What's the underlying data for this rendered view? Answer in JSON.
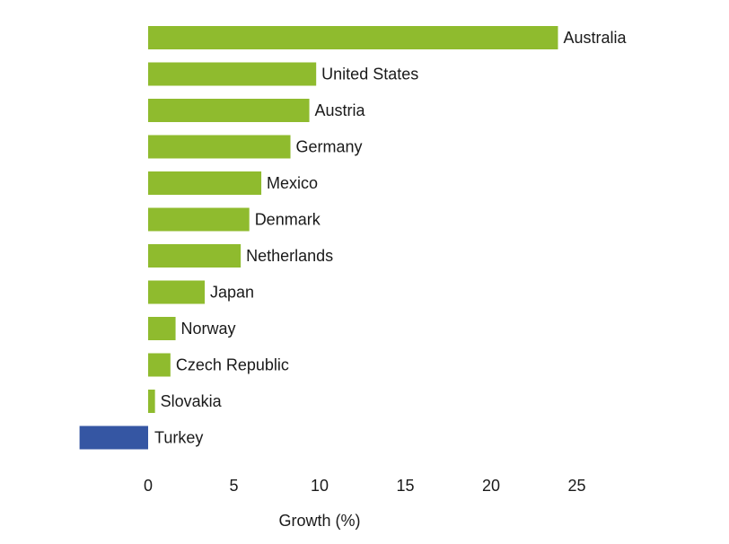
{
  "chart_data": {
    "type": "bar",
    "orientation": "horizontal",
    "categories": [
      "Australia",
      "United States",
      "Austria",
      "Germany",
      "Mexico",
      "Denmark",
      "Netherlands",
      "Japan",
      "Norway",
      "Czech Republic",
      "Slovakia",
      "Turkey"
    ],
    "values": [
      23.9,
      9.8,
      9.4,
      8.3,
      6.6,
      5.9,
      5.4,
      3.3,
      1.6,
      1.3,
      0.4,
      -4.0
    ],
    "xlabel": "Growth (%)",
    "ylabel": "",
    "xlim": [
      -4,
      26
    ],
    "xticks": [
      0,
      5,
      10,
      15,
      20,
      25
    ],
    "grid": false,
    "legend": "none",
    "colors": {
      "positive": "#8fbb2e",
      "negative": "#3556a3"
    }
  }
}
